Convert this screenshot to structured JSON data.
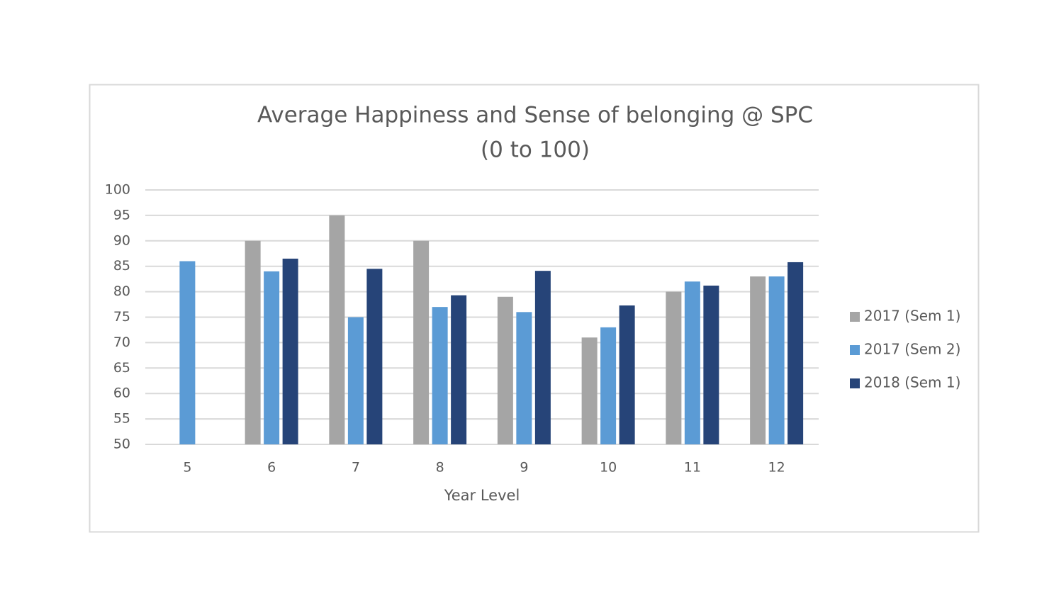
{
  "chart_data": {
    "type": "bar",
    "title": "Average Happiness and Sense of belonging @ SPC",
    "subtitle": "(0 to 100)",
    "x_label": "Year Level",
    "categories": [
      "5",
      "6",
      "7",
      "8",
      "9",
      "10",
      "11",
      "12"
    ],
    "series": [
      {
        "name": "2017 (Sem 1)",
        "color": "#a5a5a5",
        "values": [
          null,
          90,
          95,
          90,
          79,
          71,
          80,
          83
        ]
      },
      {
        "name": "2017 (Sem 2)",
        "color": "#5b9bd5",
        "values": [
          86,
          84,
          75,
          77,
          76,
          73,
          82,
          83
        ]
      },
      {
        "name": "2018 (Sem 1)",
        "color": "#264478",
        "values": [
          null,
          86.5,
          84.5,
          79.3,
          84.1,
          77.3,
          81.2,
          85.8
        ]
      }
    ],
    "ylim": [
      50,
      100
    ],
    "yticks": [
      50,
      55,
      60,
      65,
      70,
      75,
      80,
      85,
      90,
      95,
      100
    ],
    "grid": true,
    "legend": "right"
  }
}
